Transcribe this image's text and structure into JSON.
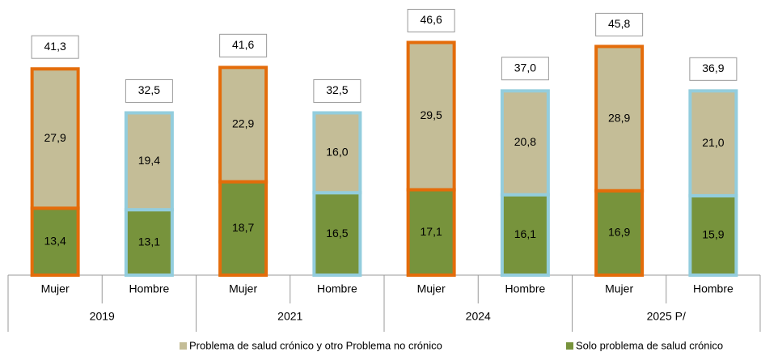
{
  "chart_data": {
    "type": "stacked_bar",
    "categories": [
      "Mujer",
      "Hombre",
      "Mujer",
      "Hombre",
      "Mujer",
      "Hombre",
      "Mujer",
      "Hombre"
    ],
    "groups": [
      "2019",
      "2021",
      "2024",
      "2025 P/"
    ],
    "outline_colors": [
      "#e46c0a",
      "#93cddd",
      "#e46c0a",
      "#93cddd",
      "#e46c0a",
      "#93cddd",
      "#e46c0a",
      "#93cddd"
    ],
    "series": [
      {
        "name": "Solo problema de salud crónico",
        "color": "#77933c",
        "values": [
          13.4,
          13.1,
          18.7,
          16.5,
          17.1,
          16.1,
          16.9,
          15.9
        ],
        "value_labels": [
          "13,4",
          "13,1",
          "18,7",
          "16,5",
          "17,1",
          "16,1",
          "16,9",
          "15,9"
        ]
      },
      {
        "name": "Problema de salud crónico y otro Problema no crónico",
        "color": "#c4bd97",
        "values": [
          27.9,
          19.4,
          22.9,
          16.0,
          29.5,
          20.8,
          28.9,
          21.0
        ],
        "value_labels": [
          "27,9",
          "19,4",
          "22,9",
          "16,0",
          "29,5",
          "20,8",
          "28,9",
          "21,0"
        ]
      }
    ],
    "totals": [
      41.3,
      32.5,
      41.6,
      32.5,
      46.6,
      37.0,
      45.8,
      36.9
    ],
    "totals_labels": [
      "41,3",
      "32,5",
      "41,6",
      "32,5",
      "46,6",
      "37,0",
      "45,8",
      "36,9"
    ]
  }
}
